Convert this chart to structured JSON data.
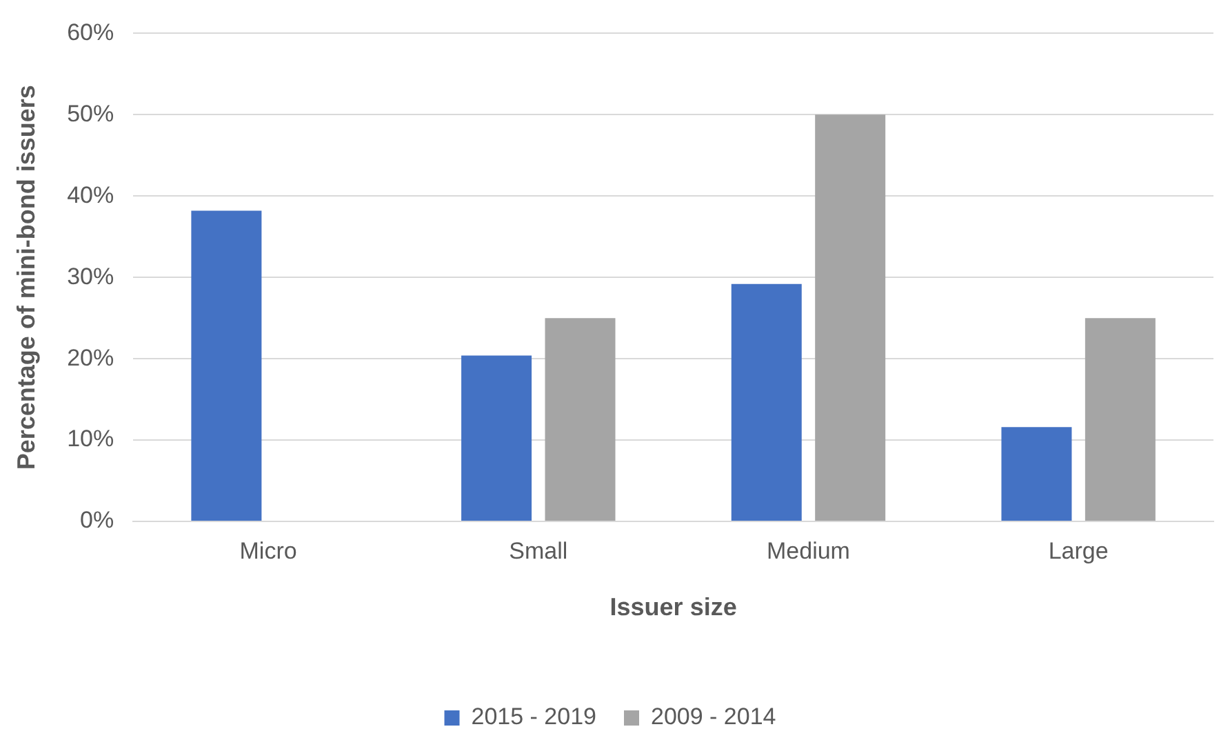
{
  "chart_data": {
    "type": "bar",
    "xlabel": "Issuer size",
    "ylabel": "Percentage of mini-bond issuers",
    "categories": [
      "Micro",
      "Small",
      "Medium",
      "Large"
    ],
    "series": [
      {
        "name": "2015 - 2019",
        "color": "#4472c4",
        "values": [
          38.2,
          20.4,
          29.2,
          11.6
        ]
      },
      {
        "name": "2009 - 2014",
        "color": "#a5a5a5",
        "values": [
          0,
          25,
          50,
          25
        ]
      }
    ],
    "ylim": [
      0,
      60
    ],
    "yticks": [
      {
        "value": 0,
        "label": "0%"
      },
      {
        "value": 10,
        "label": "10%"
      },
      {
        "value": 20,
        "label": "20%"
      },
      {
        "value": 30,
        "label": "30%"
      },
      {
        "value": 40,
        "label": "40%"
      },
      {
        "value": 50,
        "label": "50%"
      },
      {
        "value": 60,
        "label": "60%"
      }
    ],
    "grid": "y",
    "legend": "bottom"
  }
}
